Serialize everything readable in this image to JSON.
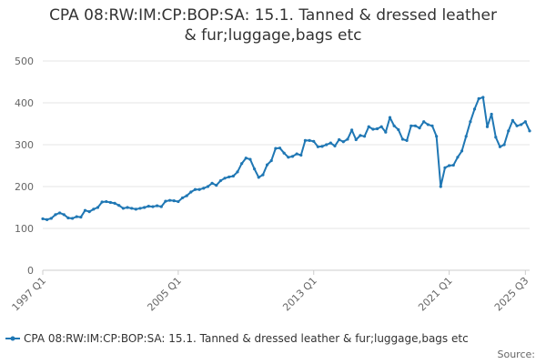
{
  "page": {
    "title_line1": "CPA 08:RW:IM:CP:BOP:SA: 15.1. Tanned & dressed leather",
    "title_line2": "& fur;luggage,bags etc",
    "source_label": "Source:"
  },
  "chart_data": {
    "type": "line",
    "title": "CPA 08:RW:IM:CP:BOP:SA: 15.1. Tanned & dressed leather & fur;luggage,bags etc",
    "xlabel": "",
    "ylabel": "",
    "ylim": [
      0,
      500
    ],
    "yticks": [
      0,
      100,
      200,
      300,
      400,
      500
    ],
    "grid": true,
    "legend_position": "bottom",
    "x_start": "1997 Q1",
    "x_tick_labels": [
      "1997 Q1",
      "2005 Q1",
      "2013 Q1",
      "2021 Q1",
      "2025 Q3"
    ],
    "x_tick_positions": [
      0,
      32,
      64,
      96,
      114
    ],
    "series": [
      {
        "name": "CPA 08:RW:IM:CP:BOP:SA: 15.1. Tanned & dressed leather & fur;luggage,bags etc",
        "color": "#1f77b4",
        "values": [
          123,
          121,
          124,
          133,
          137,
          133,
          125,
          124,
          128,
          127,
          143,
          140,
          146,
          150,
          163,
          164,
          162,
          160,
          155,
          148,
          150,
          148,
          146,
          148,
          150,
          153,
          152,
          154,
          152,
          165,
          167,
          166,
          164,
          173,
          178,
          187,
          193,
          193,
          196,
          200,
          208,
          203,
          214,
          220,
          223,
          225,
          235,
          255,
          268,
          265,
          242,
          222,
          228,
          252,
          262,
          291,
          292,
          280,
          270,
          272,
          278,
          275,
          310,
          310,
          308,
          295,
          296,
          300,
          304,
          297,
          312,
          307,
          313,
          335,
          312,
          322,
          320,
          343,
          337,
          338,
          343,
          330,
          365,
          345,
          336,
          313,
          310,
          345,
          345,
          340,
          355,
          348,
          345,
          320,
          200,
          245,
          250,
          251,
          270,
          285,
          320,
          355,
          385,
          410,
          413,
          343,
          373,
          318,
          295,
          300,
          333,
          358,
          345,
          348,
          355,
          333
        ]
      }
    ]
  }
}
